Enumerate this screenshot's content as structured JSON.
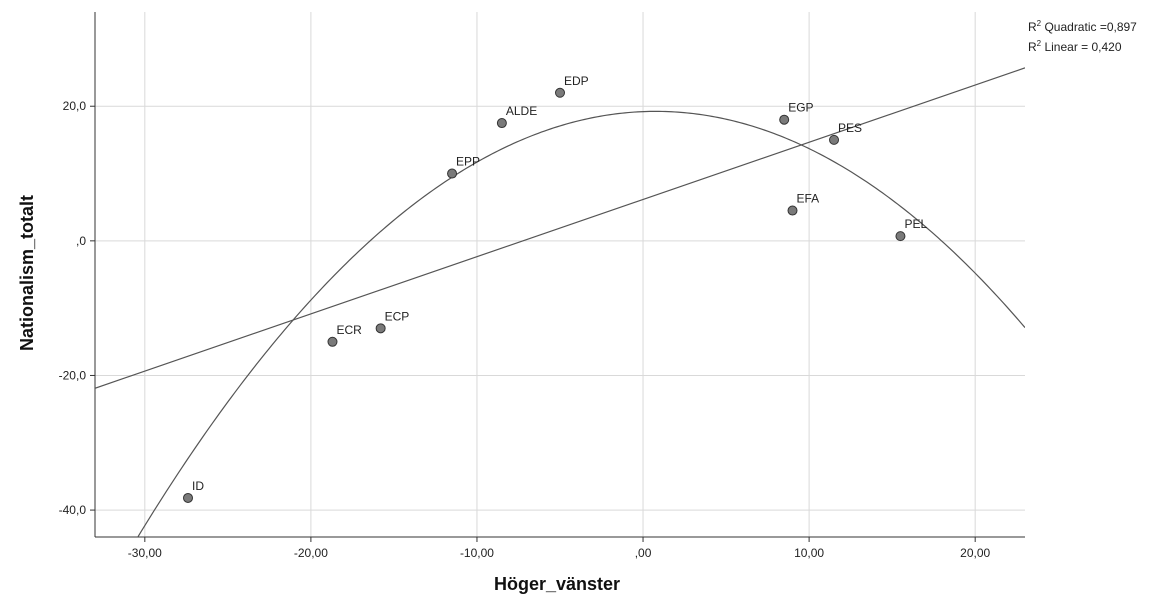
{
  "chart_data": {
    "type": "scatter",
    "xlabel": "Höger_vänster",
    "ylabel": "Nationalism_totalt",
    "xlim": [
      -33,
      23
    ],
    "ylim": [
      -44,
      34
    ],
    "x_ticks": [
      {
        "value": -30,
        "label": "-30,00"
      },
      {
        "value": -20,
        "label": "-20,00"
      },
      {
        "value": -10,
        "label": "-10,00"
      },
      {
        "value": 0,
        "label": ",00"
      },
      {
        "value": 10,
        "label": "10,00"
      },
      {
        "value": 20,
        "label": "20,00"
      }
    ],
    "y_ticks": [
      {
        "value": 20,
        "label": "20,0"
      },
      {
        "value": 0,
        "label": ",0"
      },
      {
        "value": -20,
        "label": "-20,0"
      },
      {
        "value": -40,
        "label": "-40,0"
      }
    ],
    "grid": true,
    "points": [
      {
        "label": "EDP",
        "x": -5.0,
        "y": 22.0
      },
      {
        "label": "ALDE",
        "x": -8.5,
        "y": 17.5
      },
      {
        "label": "EPP",
        "x": -11.5,
        "y": 10.0
      },
      {
        "label": "EGP",
        "x": 8.5,
        "y": 18.0
      },
      {
        "label": "PES",
        "x": 11.5,
        "y": 15.0
      },
      {
        "label": "EFA",
        "x": 9.0,
        "y": 4.5
      },
      {
        "label": "PEL",
        "x": 15.5,
        "y": 0.7
      },
      {
        "label": "ECP",
        "x": -15.8,
        "y": -13.0
      },
      {
        "label": "ECR",
        "x": -18.7,
        "y": -15.0
      },
      {
        "label": "ID",
        "x": -27.4,
        "y": -38.2
      }
    ],
    "fit_lines": {
      "linear": {
        "intercept": 6.15,
        "slope": 0.85
      },
      "quadratic": {
        "a": -0.065,
        "b": 0.1,
        "c": 19.2
      }
    },
    "legend": {
      "position": "top-right",
      "quadratic": {
        "prefix": "R",
        "sup": "2",
        "text": " Quadratic =0,897"
      },
      "linear": {
        "prefix": "R",
        "sup": "2",
        "text": " Linear = 0,420"
      }
    }
  }
}
